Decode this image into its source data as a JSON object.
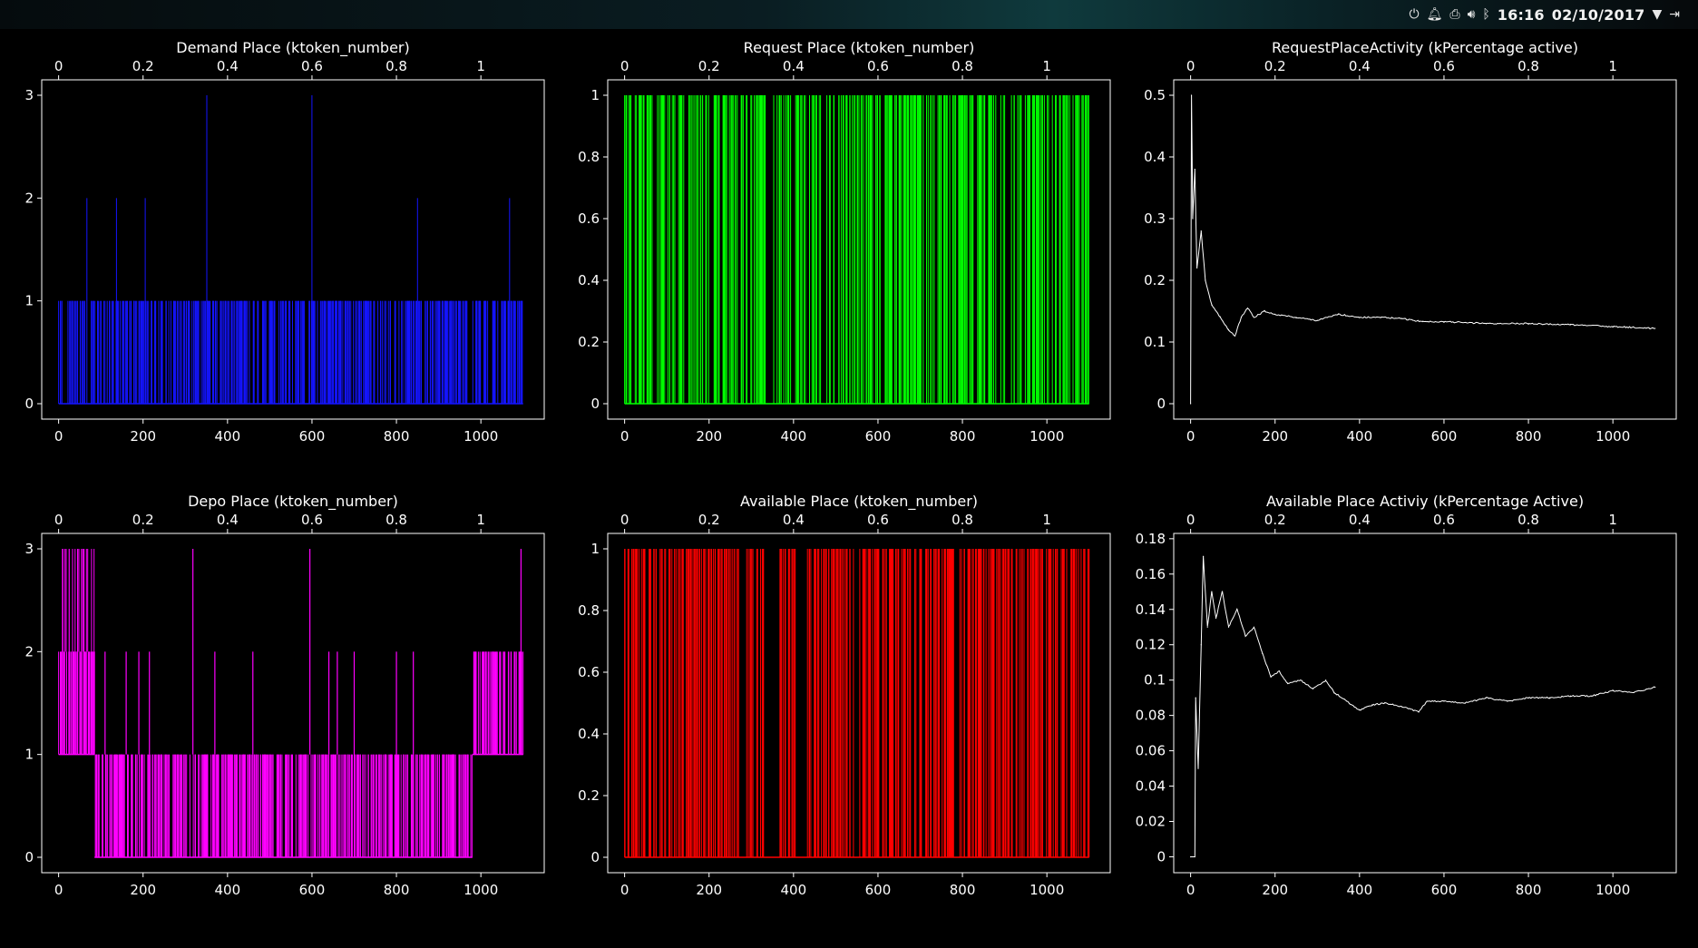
{
  "topbar": {
    "time": "16:16",
    "date": "02/10/2017",
    "icons": [
      "power-icon",
      "bell-icon",
      "clipboard-icon",
      "volume-icon",
      "bluetooth-icon",
      "wifi-icon",
      "logout-icon"
    ]
  },
  "colors": {
    "background": "#000000",
    "axes": "#ffffff",
    "blue": "#1010ff",
    "green": "#00ff00",
    "red": "#ff0000",
    "magenta": "#ff00ff",
    "white": "#ffffff"
  },
  "chart_data": [
    {
      "id": "demand",
      "type": "line",
      "title": "Demand Place (ktoken_number)",
      "color": "#1414ff",
      "xlim": [
        -40,
        1150
      ],
      "ylim": [
        -0.15,
        3.15
      ],
      "xticks": [
        0,
        200,
        400,
        600,
        800,
        1000
      ],
      "yticks": [
        0,
        1,
        2,
        3
      ],
      "ytick_labels": [
        "0",
        "1",
        "2",
        "3"
      ],
      "x2ticks": [
        0,
        0.2,
        0.4,
        0.6,
        0.8,
        1
      ],
      "x2tick_labels": [
        "0",
        "0.2",
        "0.4",
        "0.6",
        "0.8",
        "1"
      ],
      "style": "spikes",
      "x_range": [
        0,
        1100
      ],
      "spike_max": 1,
      "spikes": [
        [
          67,
          2
        ],
        [
          137,
          2
        ],
        [
          205,
          2
        ],
        [
          351,
          3
        ],
        [
          600,
          3
        ],
        [
          850,
          2
        ],
        [
          1068,
          2
        ]
      ]
    },
    {
      "id": "request",
      "type": "line",
      "title": "Request Place (ktoken_number)",
      "color": "#00ff00",
      "xlim": [
        -40,
        1150
      ],
      "ylim": [
        -0.05,
        1.05
      ],
      "xticks": [
        0,
        200,
        400,
        600,
        800,
        1000
      ],
      "yticks": [
        0,
        0.2,
        0.4,
        0.6,
        0.8,
        1
      ],
      "ytick_labels": [
        "0",
        "0.2",
        "0.4",
        "0.6",
        "0.8",
        "1"
      ],
      "x2ticks": [
        0,
        0.2,
        0.4,
        0.6,
        0.8,
        1
      ],
      "x2tick_labels": [
        "0",
        "0.2",
        "0.4",
        "0.6",
        "0.8",
        "1"
      ],
      "style": "spikes",
      "x_range": [
        0,
        1100
      ],
      "spike_max": 1,
      "spikes": []
    },
    {
      "id": "request-activity",
      "type": "line",
      "title": "RequestPlaceActivity (kPercentage active)",
      "color": "#ffffff",
      "xlim": [
        -40,
        1150
      ],
      "ylim": [
        -0.025,
        0.525
      ],
      "xticks": [
        0,
        200,
        400,
        600,
        800,
        1000
      ],
      "yticks": [
        0,
        0.1,
        0.2,
        0.3,
        0.4,
        0.5
      ],
      "ytick_labels": [
        "0",
        "0.1",
        "0.2",
        "0.3",
        "0.4",
        "0.5"
      ],
      "x2ticks": [
        0,
        0.2,
        0.4,
        0.6,
        0.8,
        1
      ],
      "x2tick_labels": [
        "0",
        "0.2",
        "0.4",
        "0.6",
        "0.8",
        "1"
      ],
      "style": "curve",
      "points": [
        [
          0,
          0
        ],
        [
          2,
          0.5
        ],
        [
          5,
          0.3
        ],
        [
          10,
          0.38
        ],
        [
          15,
          0.22
        ],
        [
          25,
          0.28
        ],
        [
          35,
          0.2
        ],
        [
          50,
          0.16
        ],
        [
          70,
          0.14
        ],
        [
          90,
          0.12
        ],
        [
          105,
          0.11
        ],
        [
          120,
          0.14
        ],
        [
          135,
          0.155
        ],
        [
          150,
          0.14
        ],
        [
          175,
          0.15
        ],
        [
          200,
          0.145
        ],
        [
          250,
          0.14
        ],
        [
          300,
          0.135
        ],
        [
          350,
          0.145
        ],
        [
          400,
          0.14
        ],
        [
          450,
          0.14
        ],
        [
          500,
          0.138
        ],
        [
          550,
          0.133
        ],
        [
          600,
          0.133
        ],
        [
          700,
          0.13
        ],
        [
          800,
          0.13
        ],
        [
          900,
          0.128
        ],
        [
          1000,
          0.125
        ],
        [
          1100,
          0.122
        ]
      ]
    },
    {
      "id": "depo",
      "type": "line",
      "title": "Depo Place (ktoken_number)",
      "color": "#ff00ff",
      "xlim": [
        -40,
        1150
      ],
      "ylim": [
        -0.15,
        3.15
      ],
      "xticks": [
        0,
        200,
        400,
        600,
        800,
        1000
      ],
      "yticks": [
        0,
        1,
        2,
        3
      ],
      "ytick_labels": [
        "0",
        "1",
        "2",
        "3"
      ],
      "x2ticks": [
        0,
        0.2,
        0.4,
        0.6,
        0.8,
        1
      ],
      "x2tick_labels": [
        "0",
        "0.2",
        "0.4",
        "0.6",
        "0.8",
        "1"
      ],
      "style": "levels",
      "segments": [
        [
          0,
          85,
          1,
          3
        ],
        [
          85,
          980,
          0,
          1
        ],
        [
          980,
          1100,
          1,
          2
        ]
      ],
      "peaks": [
        [
          10,
          3
        ],
        [
          25,
          3
        ],
        [
          45,
          3
        ],
        [
          60,
          3
        ],
        [
          110,
          2
        ],
        [
          160,
          2
        ],
        [
          190,
          2
        ],
        [
          215,
          2
        ],
        [
          318,
          3
        ],
        [
          370,
          2
        ],
        [
          460,
          2
        ],
        [
          595,
          3
        ],
        [
          640,
          2
        ],
        [
          660,
          2
        ],
        [
          700,
          2
        ],
        [
          800,
          2
        ],
        [
          840,
          2
        ],
        [
          1095,
          3
        ]
      ]
    },
    {
      "id": "available",
      "type": "line",
      "title": "Available Place (ktoken_number)",
      "color": "#ff0000",
      "xlim": [
        -40,
        1150
      ],
      "ylim": [
        -0.05,
        1.05
      ],
      "xticks": [
        0,
        200,
        400,
        600,
        800,
        1000
      ],
      "yticks": [
        0,
        0.2,
        0.4,
        0.6,
        0.8,
        1
      ],
      "ytick_labels": [
        "0",
        "0.2",
        "0.4",
        "0.6",
        "0.8",
        "1"
      ],
      "x2ticks": [
        0,
        0.2,
        0.4,
        0.6,
        0.8,
        1
      ],
      "x2tick_labels": [
        "0",
        "0.2",
        "0.4",
        "0.6",
        "0.8",
        "1"
      ],
      "style": "spikes",
      "x_range": [
        0,
        1100
      ],
      "spike_max": 1,
      "gaps": [
        [
          330,
          365
        ],
        [
          405,
          430
        ],
        [
          545,
          555
        ]
      ],
      "spikes": []
    },
    {
      "id": "available-activity",
      "type": "line",
      "title": "Available Place Activiy (kPercentage Active)",
      "color": "#ffffff",
      "xlim": [
        -40,
        1150
      ],
      "ylim": [
        -0.009,
        0.183
      ],
      "xticks": [
        0,
        200,
        400,
        600,
        800,
        1000
      ],
      "yticks": [
        0,
        0.02,
        0.04,
        0.06,
        0.08,
        0.1,
        0.12,
        0.14,
        0.16,
        0.18
      ],
      "ytick_labels": [
        "0",
        "0.02",
        "0.04",
        "0.06",
        "0.08",
        "0.1",
        "0.12",
        "0.14",
        "0.16",
        "0.18"
      ],
      "x2ticks": [
        0,
        0.2,
        0.4,
        0.6,
        0.8,
        1
      ],
      "x2tick_labels": [
        "0",
        "0.2",
        "0.4",
        "0.6",
        "0.8",
        "1"
      ],
      "style": "curve",
      "points": [
        [
          0,
          0
        ],
        [
          10,
          0
        ],
        [
          12,
          0.09
        ],
        [
          18,
          0.05
        ],
        [
          25,
          0.12
        ],
        [
          30,
          0.17
        ],
        [
          40,
          0.13
        ],
        [
          50,
          0.15
        ],
        [
          60,
          0.135
        ],
        [
          75,
          0.15
        ],
        [
          90,
          0.13
        ],
        [
          110,
          0.14
        ],
        [
          130,
          0.125
        ],
        [
          150,
          0.13
        ],
        [
          170,
          0.115
        ],
        [
          190,
          0.102
        ],
        [
          210,
          0.105
        ],
        [
          230,
          0.098
        ],
        [
          260,
          0.1
        ],
        [
          290,
          0.095
        ],
        [
          320,
          0.1
        ],
        [
          340,
          0.093
        ],
        [
          370,
          0.088
        ],
        [
          400,
          0.083
        ],
        [
          430,
          0.086
        ],
        [
          460,
          0.087
        ],
        [
          500,
          0.085
        ],
        [
          540,
          0.082
        ],
        [
          560,
          0.088
        ],
        [
          600,
          0.088
        ],
        [
          650,
          0.087
        ],
        [
          700,
          0.09
        ],
        [
          750,
          0.088
        ],
        [
          800,
          0.09
        ],
        [
          850,
          0.09
        ],
        [
          900,
          0.091
        ],
        [
          950,
          0.091
        ],
        [
          1000,
          0.094
        ],
        [
          1050,
          0.093
        ],
        [
          1100,
          0.096
        ]
      ]
    }
  ]
}
